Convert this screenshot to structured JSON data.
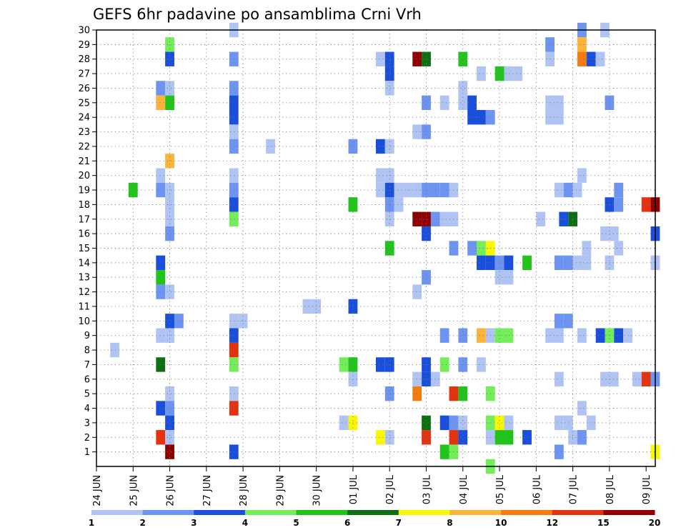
{
  "chart_data": {
    "type": "heatmap",
    "title": "GEFS 6hr padavine po ansamblima Crni Vrh",
    "xlabel": "",
    "ylabel": "",
    "x_ticks": [
      "24 JUN",
      "25 JUN",
      "26 JUN",
      "27 JUN",
      "28 JUN",
      "29 JUN",
      "30 JUN",
      "01 JUL",
      "02 JUL",
      "03 JUL",
      "04 JUL",
      "05 JUL",
      "06 JUL",
      "07 JUL",
      "08 JUL",
      "09 JUL"
    ],
    "y_ticks": [
      1,
      2,
      3,
      4,
      5,
      6,
      7,
      8,
      9,
      10,
      11,
      12,
      13,
      14,
      15,
      16,
      17,
      18,
      19,
      20,
      21,
      22,
      23,
      24,
      25,
      26,
      27,
      28,
      29,
      30
    ],
    "x_range": [
      0,
      61
    ],
    "y_range": [
      0,
      30
    ],
    "grid": true,
    "colorbar": {
      "labels": [
        "1",
        "2",
        "3",
        "4",
        "5",
        "6",
        "7",
        "8",
        "10",
        "12",
        "15",
        "20"
      ],
      "colors": [
        "#b0c4f4",
        "#6d94f0",
        "#1a4fdc",
        "#73ee5a",
        "#22c41c",
        "#0e6e12",
        "#f8f800",
        "#fbb33a",
        "#f37b10",
        "#e3320f",
        "#8f0000"
      ]
    },
    "cells": [
      [
        15,
        30,
        0
      ],
      [
        53,
        30,
        1
      ],
      [
        55.5,
        30,
        0
      ],
      [
        8,
        29,
        3
      ],
      [
        49.5,
        29,
        1
      ],
      [
        53,
        29,
        7
      ],
      [
        8,
        28,
        2
      ],
      [
        15,
        28,
        1
      ],
      [
        31,
        28,
        0
      ],
      [
        32,
        28,
        2
      ],
      [
        35,
        28,
        10
      ],
      [
        36,
        28,
        5
      ],
      [
        40,
        28,
        4
      ],
      [
        49.5,
        28,
        0
      ],
      [
        53,
        28,
        8
      ],
      [
        54,
        28,
        2
      ],
      [
        55,
        28,
        0
      ],
      [
        32,
        27,
        2
      ],
      [
        42,
        27,
        0
      ],
      [
        44,
        27,
        4
      ],
      [
        45,
        27,
        0
      ],
      [
        46,
        27,
        0
      ],
      [
        7,
        26,
        1
      ],
      [
        8,
        26,
        0
      ],
      [
        15,
        26,
        1
      ],
      [
        32,
        26,
        0
      ],
      [
        40,
        26,
        0
      ],
      [
        7,
        25,
        7
      ],
      [
        8,
        25,
        4
      ],
      [
        15,
        25,
        2
      ],
      [
        36,
        25,
        1
      ],
      [
        38,
        25,
        0
      ],
      [
        40,
        25,
        0
      ],
      [
        41,
        25,
        2
      ],
      [
        49.5,
        25,
        0
      ],
      [
        50.5,
        25,
        0
      ],
      [
        56,
        25,
        1
      ],
      [
        15,
        24,
        2
      ],
      [
        41,
        24,
        2
      ],
      [
        42,
        24,
        2
      ],
      [
        43,
        24,
        1
      ],
      [
        49.5,
        24,
        0
      ],
      [
        50.5,
        24,
        0
      ],
      [
        15,
        23,
        0
      ],
      [
        35,
        23,
        0
      ],
      [
        36,
        23,
        1
      ],
      [
        15,
        22,
        1
      ],
      [
        19,
        22,
        0
      ],
      [
        28,
        22,
        1
      ],
      [
        31,
        22,
        2
      ],
      [
        32,
        22,
        0
      ],
      [
        8,
        21,
        7
      ],
      [
        7,
        20,
        0
      ],
      [
        15,
        20,
        0
      ],
      [
        31,
        20,
        0
      ],
      [
        32,
        20,
        0
      ],
      [
        53,
        20,
        0
      ],
      [
        4,
        19,
        4
      ],
      [
        7,
        19,
        1
      ],
      [
        8,
        19,
        0
      ],
      [
        15,
        19,
        1
      ],
      [
        31,
        19,
        0
      ],
      [
        32,
        19,
        2
      ],
      [
        33,
        19,
        0
      ],
      [
        34,
        19,
        0
      ],
      [
        35,
        19,
        0
      ],
      [
        36,
        19,
        1
      ],
      [
        37,
        19,
        1
      ],
      [
        38,
        19,
        1
      ],
      [
        39,
        19,
        0
      ],
      [
        50.5,
        19,
        0
      ],
      [
        51.5,
        19,
        1
      ],
      [
        52.5,
        19,
        0
      ],
      [
        57,
        19,
        1
      ],
      [
        8,
        18,
        0
      ],
      [
        15,
        18,
        2
      ],
      [
        28,
        18,
        4
      ],
      [
        32,
        18,
        1
      ],
      [
        33,
        18,
        0
      ],
      [
        56,
        18,
        2
      ],
      [
        57,
        18,
        1
      ],
      [
        60,
        18,
        9
      ],
      [
        61,
        18,
        10
      ],
      [
        8,
        17,
        0
      ],
      [
        15,
        17,
        3
      ],
      [
        32,
        17,
        0
      ],
      [
        35,
        17,
        10
      ],
      [
        36,
        17,
        10
      ],
      [
        37,
        17,
        1
      ],
      [
        38,
        17,
        0
      ],
      [
        39,
        17,
        0
      ],
      [
        48.5,
        17,
        0
      ],
      [
        51,
        17,
        2
      ],
      [
        52,
        17,
        5
      ],
      [
        8,
        16,
        1
      ],
      [
        36,
        16,
        2
      ],
      [
        55.5,
        16,
        0
      ],
      [
        56.5,
        16,
        0
      ],
      [
        61,
        16,
        2
      ],
      [
        32,
        15,
        4
      ],
      [
        39,
        15,
        1
      ],
      [
        41,
        15,
        1
      ],
      [
        42,
        15,
        3
      ],
      [
        43,
        15,
        6
      ],
      [
        53.5,
        15,
        0
      ],
      [
        57,
        15,
        0
      ],
      [
        7,
        14,
        2
      ],
      [
        42,
        14,
        2
      ],
      [
        43,
        14,
        2
      ],
      [
        44,
        14,
        1
      ],
      [
        45,
        14,
        2
      ],
      [
        47,
        14,
        4
      ],
      [
        50.5,
        14,
        1
      ],
      [
        51.5,
        14,
        1
      ],
      [
        52.5,
        14,
        0
      ],
      [
        53.5,
        14,
        0
      ],
      [
        56,
        14,
        0
      ],
      [
        61,
        14,
        0
      ],
      [
        7,
        13,
        4
      ],
      [
        36,
        13,
        1
      ],
      [
        44,
        13,
        0
      ],
      [
        45,
        13,
        0
      ],
      [
        35,
        12,
        0
      ],
      [
        7,
        12,
        1
      ],
      [
        8,
        12,
        0
      ],
      [
        23,
        11,
        0
      ],
      [
        24,
        11,
        0
      ],
      [
        28,
        11,
        2
      ],
      [
        8,
        10,
        2
      ],
      [
        9,
        10,
        1
      ],
      [
        15,
        10,
        0
      ],
      [
        16,
        10,
        0
      ],
      [
        50.5,
        10,
        1
      ],
      [
        51.5,
        10,
        1
      ],
      [
        7,
        9,
        0
      ],
      [
        8,
        9,
        0
      ],
      [
        15,
        9,
        2
      ],
      [
        38,
        9,
        1
      ],
      [
        40,
        9,
        1
      ],
      [
        42,
        9,
        7
      ],
      [
        43,
        9,
        0
      ],
      [
        44,
        9,
        3
      ],
      [
        45,
        9,
        3
      ],
      [
        49.5,
        9,
        0
      ],
      [
        50.5,
        9,
        0
      ],
      [
        53,
        9,
        0
      ],
      [
        55,
        9,
        2
      ],
      [
        56,
        9,
        3
      ],
      [
        57,
        9,
        2
      ],
      [
        58,
        9,
        0
      ],
      [
        2,
        8,
        0
      ],
      [
        15,
        8,
        9
      ],
      [
        7,
        7,
        5
      ],
      [
        15,
        7,
        3
      ],
      [
        27,
        7,
        3
      ],
      [
        28,
        7,
        4
      ],
      [
        31,
        7,
        2
      ],
      [
        32,
        7,
        2
      ],
      [
        36,
        7,
        2
      ],
      [
        38,
        7,
        3
      ],
      [
        40,
        7,
        1
      ],
      [
        42,
        7,
        0
      ],
      [
        28,
        6,
        0
      ],
      [
        35,
        6,
        0
      ],
      [
        36,
        6,
        2
      ],
      [
        37,
        6,
        0
      ],
      [
        50.5,
        6,
        0
      ],
      [
        55.5,
        6,
        0
      ],
      [
        56.5,
        6,
        0
      ],
      [
        59,
        6,
        0
      ],
      [
        60,
        6,
        9
      ],
      [
        61,
        6,
        1
      ],
      [
        8,
        5,
        0
      ],
      [
        15,
        5,
        0
      ],
      [
        32,
        5,
        1
      ],
      [
        35,
        5,
        8
      ],
      [
        39,
        5,
        9
      ],
      [
        40,
        5,
        4
      ],
      [
        43,
        5,
        3
      ],
      [
        7,
        4,
        2
      ],
      [
        8,
        4,
        1
      ],
      [
        15,
        4,
        9
      ],
      [
        53,
        4,
        0
      ],
      [
        8,
        3,
        2
      ],
      [
        27,
        3,
        0
      ],
      [
        28,
        3,
        6
      ],
      [
        36,
        3,
        5
      ],
      [
        38,
        3,
        2
      ],
      [
        39,
        3,
        1
      ],
      [
        40,
        3,
        0
      ],
      [
        43,
        3,
        3
      ],
      [
        44,
        3,
        6
      ],
      [
        45,
        3,
        0
      ],
      [
        50.5,
        3,
        0
      ],
      [
        51.5,
        3,
        0
      ],
      [
        54,
        3,
        0
      ],
      [
        7,
        2,
        9
      ],
      [
        8,
        2,
        0
      ],
      [
        31,
        2,
        6
      ],
      [
        32,
        2,
        0
      ],
      [
        36,
        2,
        9
      ],
      [
        39,
        2,
        9
      ],
      [
        40,
        2,
        2
      ],
      [
        43,
        2,
        0
      ],
      [
        44,
        2,
        4
      ],
      [
        45,
        2,
        4
      ],
      [
        47,
        2,
        2
      ],
      [
        52,
        2,
        0
      ],
      [
        53,
        2,
        1
      ],
      [
        8,
        1,
        10
      ],
      [
        15,
        1,
        2
      ],
      [
        38,
        1,
        4
      ],
      [
        39,
        1,
        3
      ],
      [
        50.5,
        1,
        1
      ],
      [
        61,
        1,
        6
      ],
      [
        43,
        0,
        3
      ]
    ]
  }
}
